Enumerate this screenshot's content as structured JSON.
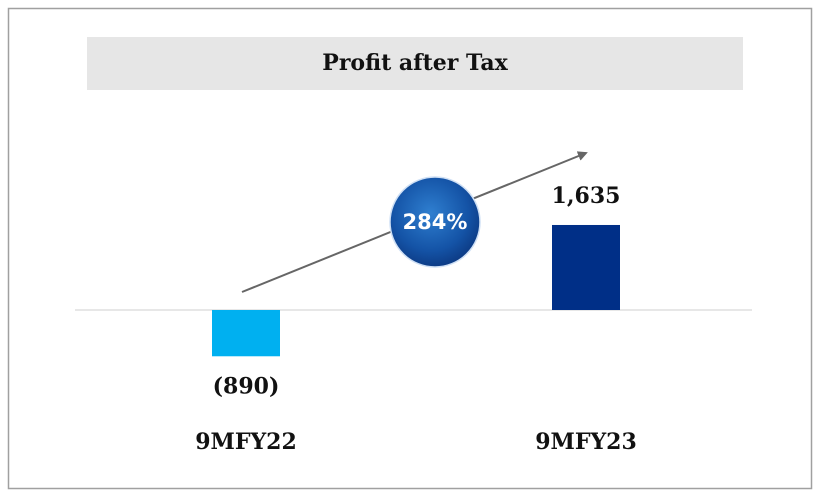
{
  "chart_data": {
    "type": "bar",
    "title": "Profit after Tax",
    "categories": [
      "9MFY22",
      "9MFY23"
    ],
    "values": [
      -890,
      1635
    ],
    "value_labels": [
      "(890)",
      "1,635"
    ],
    "colors": [
      "#00b0f0",
      "#002f87"
    ],
    "annotation": "284%",
    "ylim": [
      -2000,
      3000
    ]
  }
}
